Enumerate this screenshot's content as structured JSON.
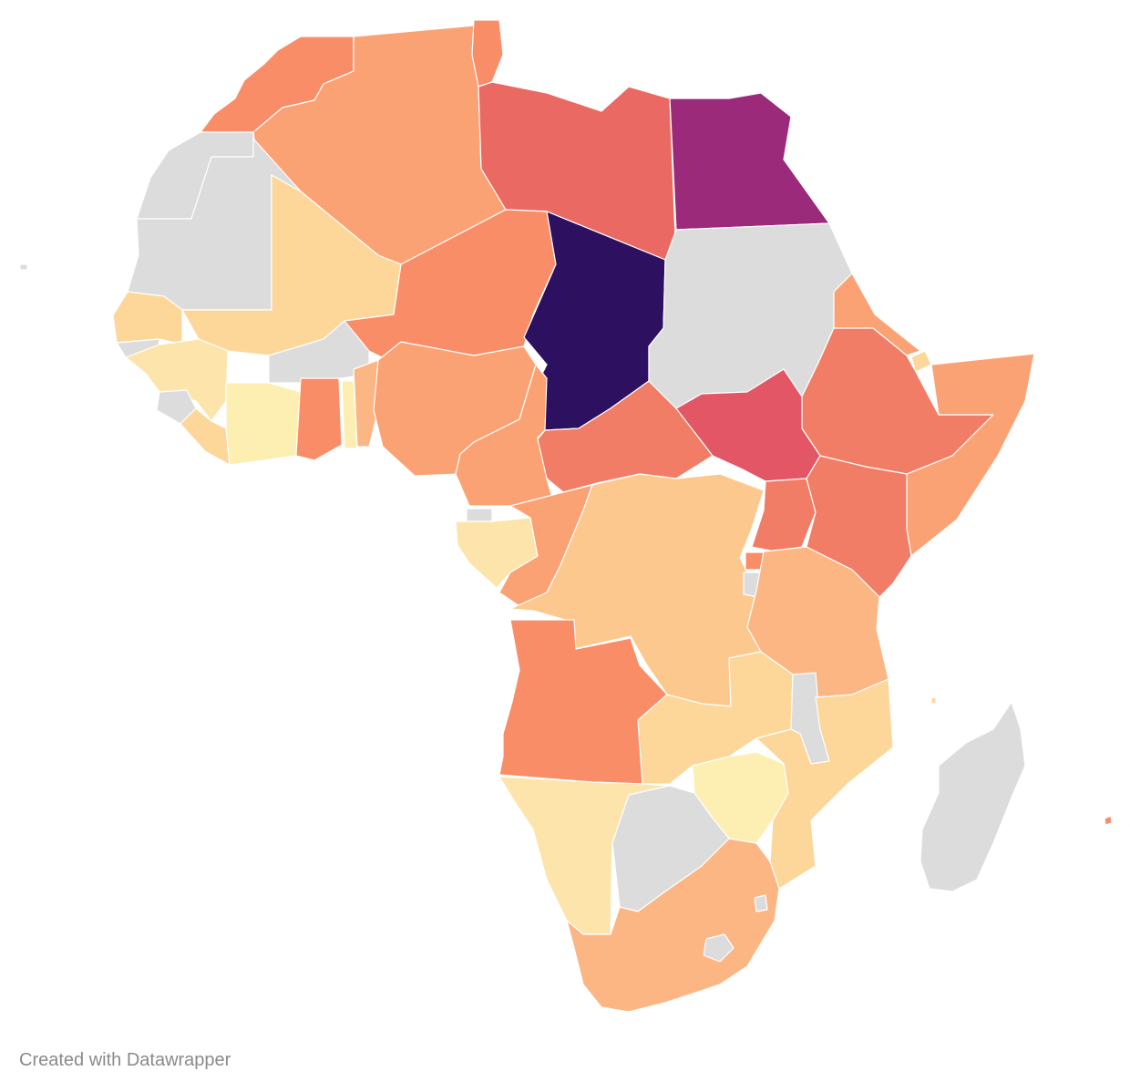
{
  "credit": "Created with Datawrapper",
  "palette": {
    "no_data": "#dcdcdc",
    "c1": "#fdeeb2",
    "c2": "#fde4ab",
    "c3": "#fdd69a",
    "c4": "#fdc88e",
    "c5": "#fcb684",
    "c6": "#fba274",
    "c7": "#f98d67",
    "c8": "#f17d66",
    "c9": "#ea6a63",
    "c10": "#e25665",
    "c11": "#9b2a7b",
    "c12": "#2d1160"
  }
}
